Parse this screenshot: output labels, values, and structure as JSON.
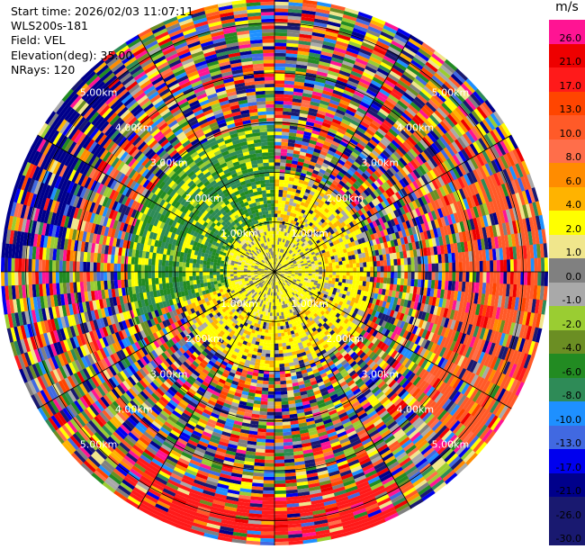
{
  "header": {
    "start_time": "Start time: 2026/02/03 11:07:11",
    "site": "WLS200s-181",
    "field": "Field: VEL",
    "elevation": "Elevation(deg): 35.00",
    "nrays": "NRays: 120"
  },
  "colorbar": {
    "unit": "m/s",
    "levels": [
      {
        "label": "26.0",
        "color": "#ff1493"
      },
      {
        "label": "21.0",
        "color": "#ee0000"
      },
      {
        "label": "17.0",
        "color": "#ff1a1a"
      },
      {
        "label": "13.0",
        "color": "#ff4500"
      },
      {
        "label": "10.0",
        "color": "#ff5a28"
      },
      {
        "label": "8.0",
        "color": "#ff6e4a"
      },
      {
        "label": "6.0",
        "color": "#ff8c00"
      },
      {
        "label": "4.0",
        "color": "#ffb300"
      },
      {
        "label": "2.0",
        "color": "#ffff00"
      },
      {
        "label": "1.0",
        "color": "#f0e68c"
      },
      {
        "label": "0.0",
        "color": "#808080"
      },
      {
        "label": "-1.0",
        "color": "#a9a9a9"
      },
      {
        "label": "-2.0",
        "color": "#9acd32"
      },
      {
        "label": "-4.0",
        "color": "#6b8e23"
      },
      {
        "label": "-6.0",
        "color": "#228b22"
      },
      {
        "label": "-8.0",
        "color": "#2e8b57"
      },
      {
        "label": "-10.0",
        "color": "#1e90ff"
      },
      {
        "label": "-13.0",
        "color": "#4169e1"
      },
      {
        "label": "-17.0",
        "color": "#0000ee"
      },
      {
        "label": "-21.0",
        "color": "#00008b"
      },
      {
        "label": "-26.0",
        "color": "#191970"
      },
      {
        "label": "-30.0",
        "color": "#191970"
      }
    ]
  },
  "chart_data": {
    "type": "heatmap",
    "title": "",
    "field": "VEL",
    "unit": "m/s",
    "projection": "polar",
    "nrays": 120,
    "range_ring_labels": [
      "1.00km",
      "2.00km",
      "3.00km",
      "4.00km",
      "5.00km"
    ],
    "range_rings_km": [
      1,
      2,
      3,
      4,
      5
    ],
    "max_range_km": 5.5,
    "azimuth_spokes": 12,
    "description_of_field": "Near-range (< ~1 km) values near 0 to +2 m/s; west/north-west quadrant around -4 to -8 m/s to ~3 km; far ranges (> ~3 km) highly variable across full color scale"
  }
}
